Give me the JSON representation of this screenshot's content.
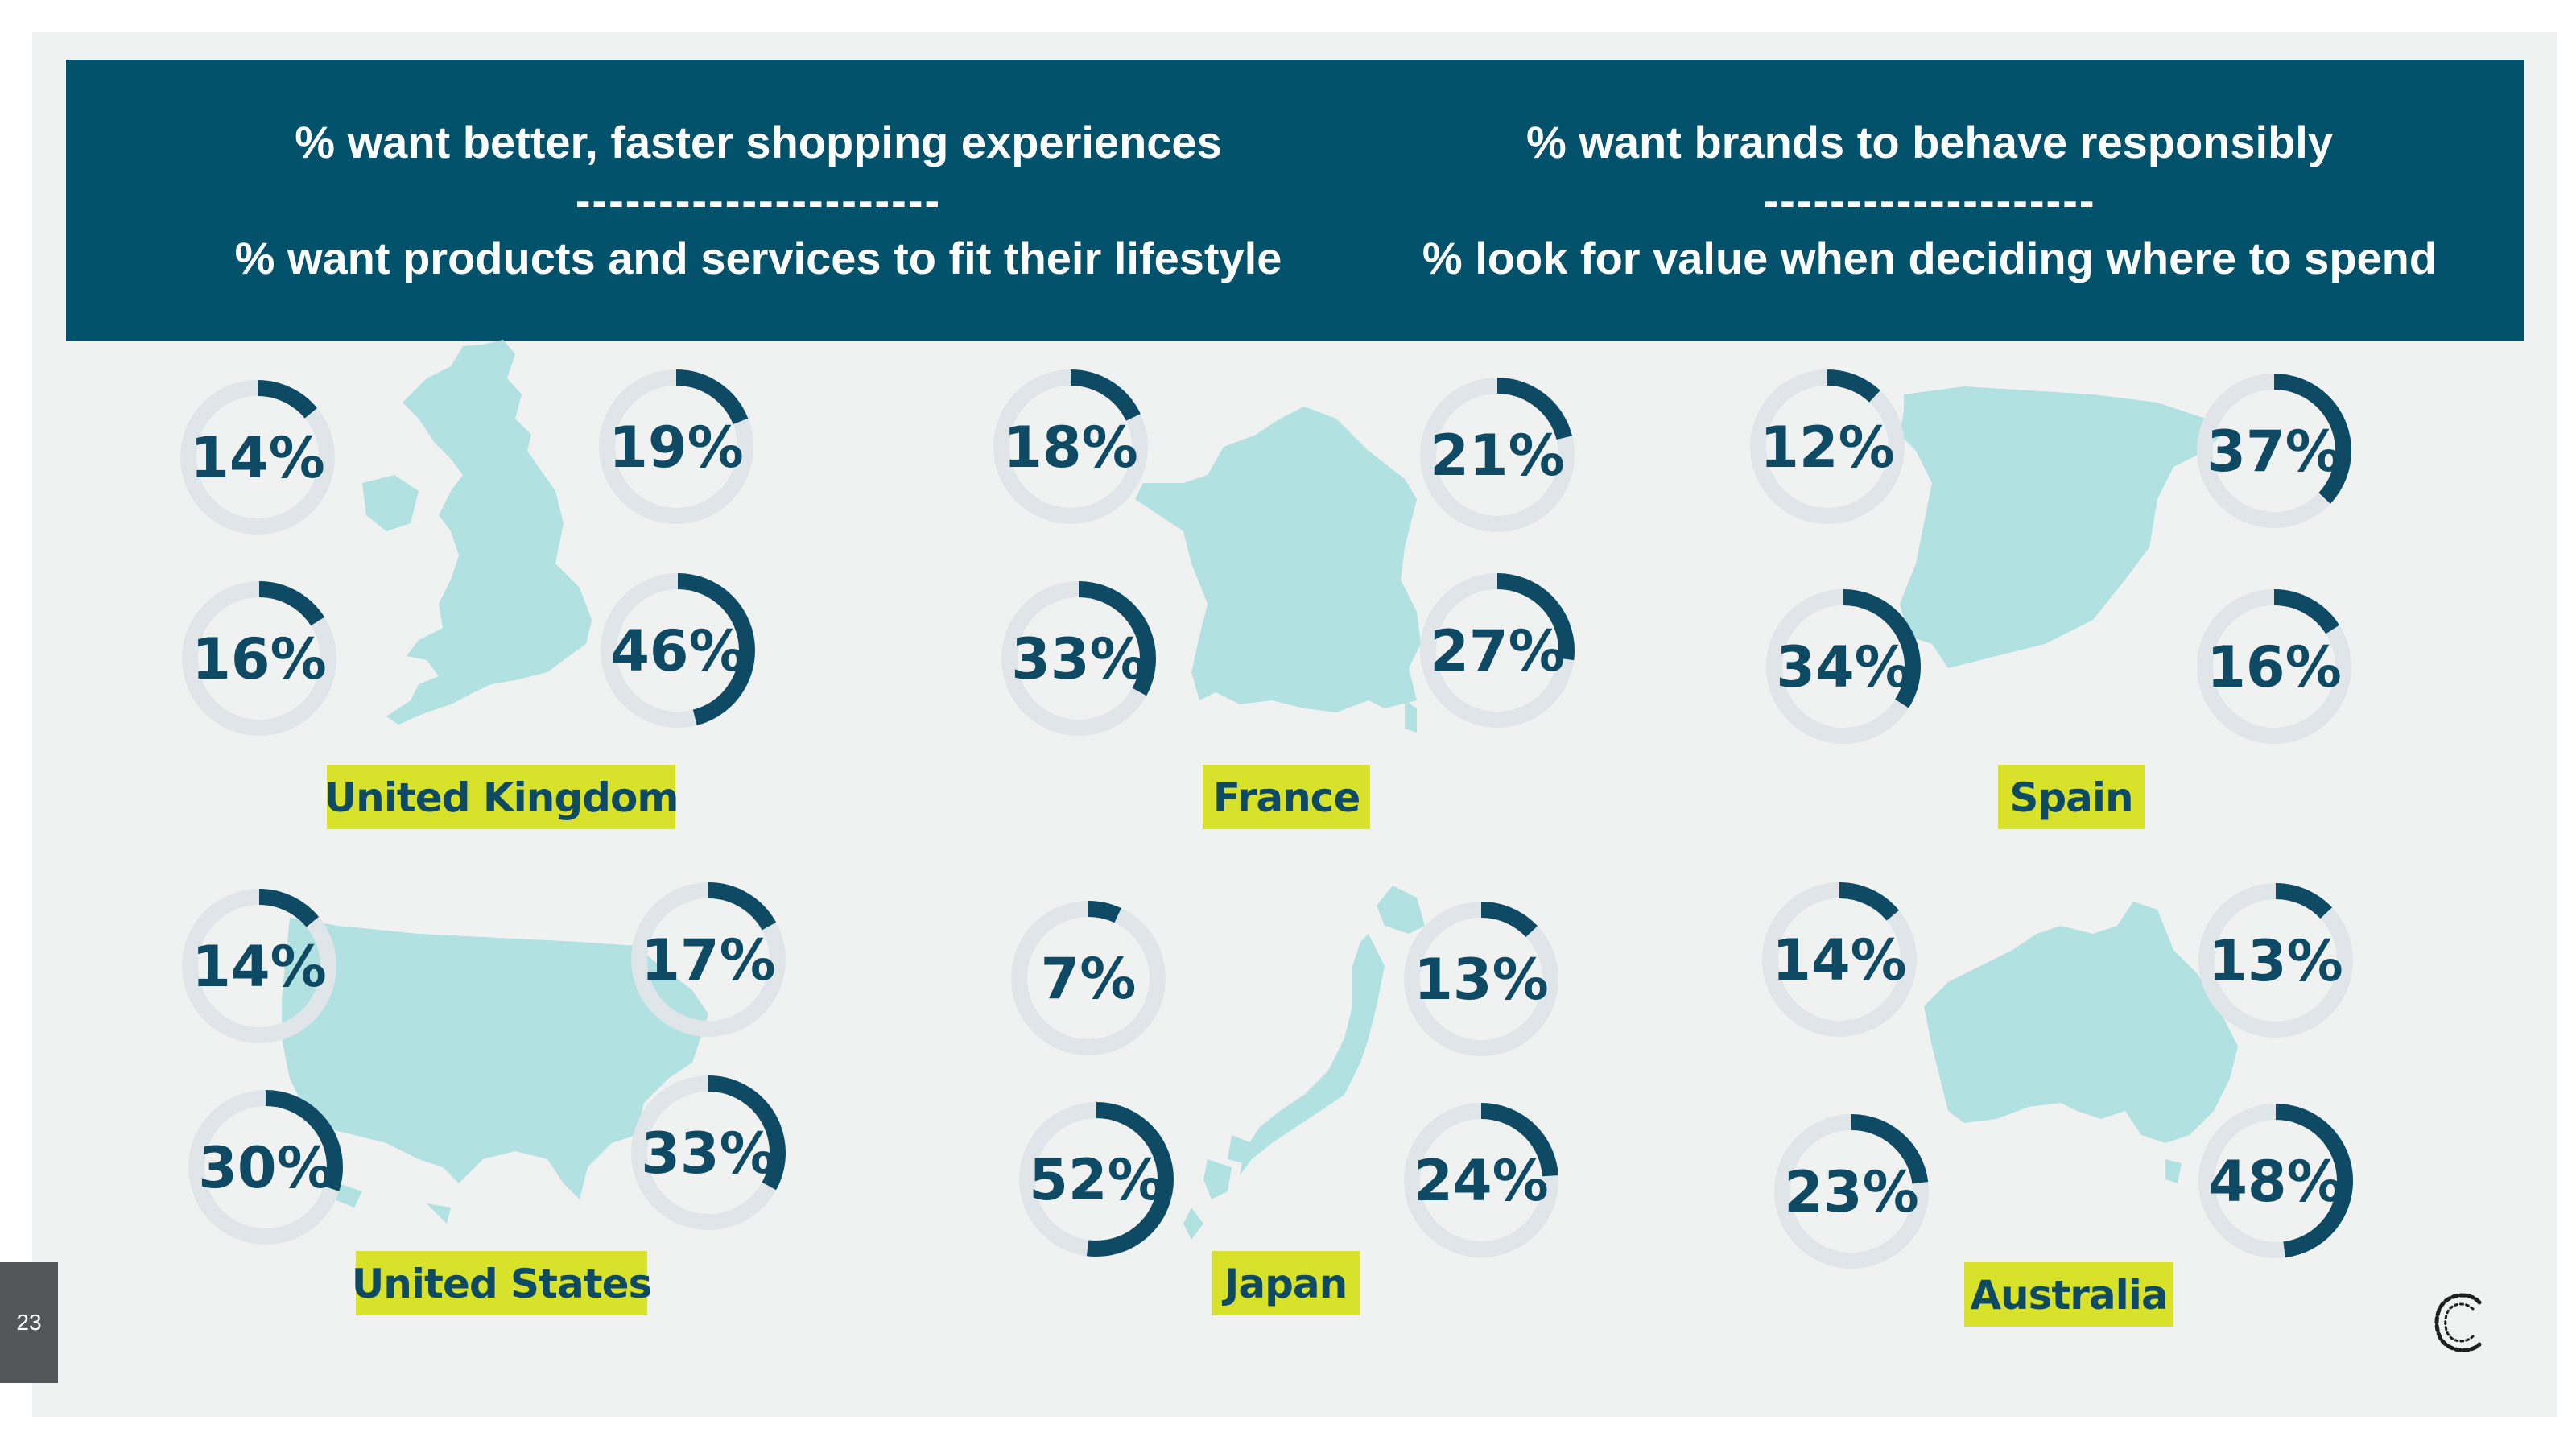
{
  "header": {
    "left_line1": "% want better, faster shopping experiences",
    "left_sep": "----------------------",
    "left_line2": "% want products and services to fit their lifestyle",
    "right_line1": "% want brands to behave responsibly",
    "right_sep": "--------------------",
    "right_line2": "% look for value when deciding where to spend"
  },
  "page_number": "23",
  "colors": {
    "header_bg": "#02526b",
    "ring_fill": "#0e4a64",
    "ring_track": "#dfe5e8",
    "map_fill": "#b1e1e0",
    "label_bg": "#d9e22a"
  },
  "chart_data": {
    "type": "donut-grid",
    "title": "",
    "positions": [
      "top-left",
      "top-right",
      "bottom-left",
      "bottom-right"
    ],
    "countries": [
      {
        "name": "United Kingdom",
        "values": [
          14,
          19,
          16,
          46
        ],
        "labels": [
          "14%",
          "19%",
          "16%",
          "46%"
        ]
      },
      {
        "name": "France",
        "values": [
          18,
          21,
          33,
          27
        ],
        "labels": [
          "18%",
          "21%",
          "33%",
          "27%"
        ]
      },
      {
        "name": "Spain",
        "values": [
          12,
          37,
          34,
          16
        ],
        "labels": [
          "12%",
          "37%",
          "34%",
          "16%"
        ]
      },
      {
        "name": "United States",
        "values": [
          14,
          17,
          30,
          33
        ],
        "labels": [
          "14%",
          "17%",
          "30%",
          "33%"
        ]
      },
      {
        "name": "Japan",
        "values": [
          7,
          13,
          52,
          24
        ],
        "labels": [
          "7%",
          "13%",
          "52%",
          "24%"
        ]
      },
      {
        "name": "Australia",
        "values": [
          14,
          13,
          23,
          48
        ],
        "labels": [
          "14%",
          "13%",
          "23%",
          "48%"
        ]
      }
    ]
  }
}
